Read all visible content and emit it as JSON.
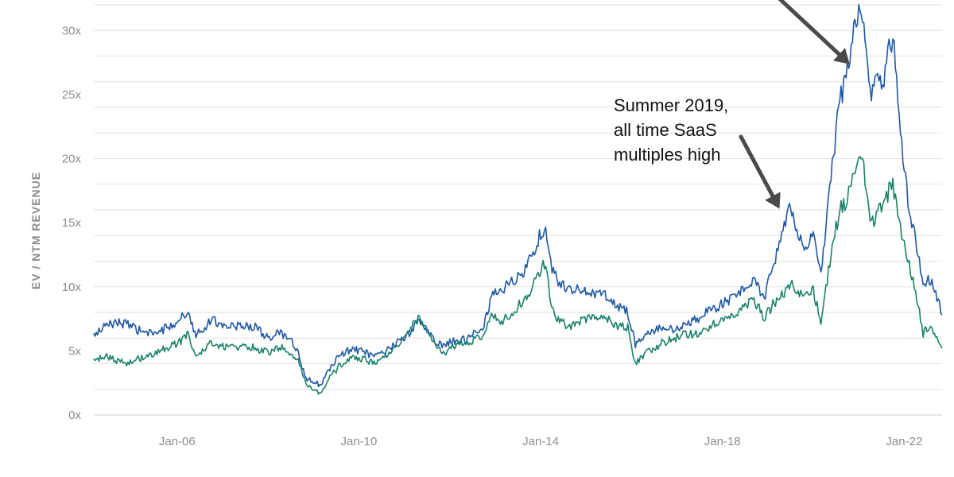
{
  "chart_data": {
    "type": "line",
    "ylabel": "EV / NTM REVENUE",
    "ylim": [
      0,
      32
    ],
    "yticks": [
      {
        "value": 0,
        "label": "0x"
      },
      {
        "value": 5,
        "label": "5x"
      },
      {
        "value": 10,
        "label": "10x"
      },
      {
        "value": 15,
        "label": "15x"
      },
      {
        "value": 20,
        "label": "20x"
      },
      {
        "value": 25,
        "label": "25x"
      },
      {
        "value": 30,
        "label": "30x"
      }
    ],
    "xlim": [
      "2004-03",
      "2022-11"
    ],
    "xticks": [
      {
        "value": "2006-01",
        "label": "Jan-06"
      },
      {
        "value": "2010-01",
        "label": "Jan-10"
      },
      {
        "value": "2014-01",
        "label": "Jan-14"
      },
      {
        "value": "2018-01",
        "label": "Jan-18"
      },
      {
        "value": "2022-01",
        "label": "Jan-22"
      }
    ],
    "grid": true,
    "series": [
      {
        "color": "#1f58a5",
        "points": [
          [
            "2004-03",
            6.2
          ],
          [
            "2004-06",
            6.9
          ],
          [
            "2004-09",
            7.3
          ],
          [
            "2004-12",
            7.0
          ],
          [
            "2005-03",
            6.6
          ],
          [
            "2005-06",
            6.3
          ],
          [
            "2005-09",
            6.6
          ],
          [
            "2005-12",
            7.1
          ],
          [
            "2006-02",
            7.6
          ],
          [
            "2006-04",
            7.9
          ],
          [
            "2006-06",
            6.3
          ],
          [
            "2006-08",
            6.8
          ],
          [
            "2006-10",
            7.4
          ],
          [
            "2007-01",
            7.1
          ],
          [
            "2007-04",
            6.9
          ],
          [
            "2007-07",
            7.0
          ],
          [
            "2007-10",
            6.8
          ],
          [
            "2008-01",
            6.0
          ],
          [
            "2008-04",
            6.4
          ],
          [
            "2008-07",
            5.8
          ],
          [
            "2008-09",
            4.8
          ],
          [
            "2008-11",
            2.8
          ],
          [
            "2009-01",
            2.6
          ],
          [
            "2009-03",
            2.3
          ],
          [
            "2009-05",
            3.5
          ],
          [
            "2009-08",
            4.7
          ],
          [
            "2009-11",
            5.1
          ],
          [
            "2010-02",
            5.0
          ],
          [
            "2010-05",
            4.5
          ],
          [
            "2010-08",
            4.9
          ],
          [
            "2010-11",
            5.6
          ],
          [
            "2011-02",
            6.3
          ],
          [
            "2011-05",
            7.4
          ],
          [
            "2011-08",
            6.2
          ],
          [
            "2011-11",
            5.3
          ],
          [
            "2012-02",
            5.8
          ],
          [
            "2012-05",
            5.9
          ],
          [
            "2012-08",
            6.6
          ],
          [
            "2012-10",
            7.0
          ],
          [
            "2012-12",
            9.3
          ],
          [
            "2013-03",
            9.8
          ],
          [
            "2013-06",
            10.5
          ],
          [
            "2013-09",
            11.3
          ],
          [
            "2013-12",
            13.5
          ],
          [
            "2014-02",
            14.6
          ],
          [
            "2014-04",
            11.4
          ],
          [
            "2014-06",
            10.2
          ],
          [
            "2014-09",
            9.9
          ],
          [
            "2014-12",
            9.6
          ],
          [
            "2015-03",
            9.6
          ],
          [
            "2015-06",
            9.3
          ],
          [
            "2015-09",
            8.6
          ],
          [
            "2015-12",
            8.1
          ],
          [
            "2016-02",
            5.4
          ],
          [
            "2016-05",
            6.3
          ],
          [
            "2016-09",
            6.9
          ],
          [
            "2016-12",
            6.6
          ],
          [
            "2017-03",
            7.0
          ],
          [
            "2017-06",
            7.4
          ],
          [
            "2017-09",
            8.0
          ],
          [
            "2017-12",
            8.5
          ],
          [
            "2018-03",
            9.0
          ],
          [
            "2018-06",
            9.6
          ],
          [
            "2018-09",
            10.6
          ],
          [
            "2018-12",
            9.1
          ],
          [
            "2019-03",
            12.3
          ],
          [
            "2019-06",
            15.3
          ],
          [
            "2019-07",
            16.2
          ],
          [
            "2019-09",
            14.3
          ],
          [
            "2019-11",
            12.7
          ],
          [
            "2020-01",
            14.3
          ],
          [
            "2020-03",
            10.8
          ],
          [
            "2020-06",
            19.5
          ],
          [
            "2020-08",
            24.5
          ],
          [
            "2020-10",
            27.0
          ],
          [
            "2020-12",
            30.6
          ],
          [
            "2021-02",
            31.5
          ],
          [
            "2021-04",
            24.7
          ],
          [
            "2021-06",
            25.8
          ],
          [
            "2021-08",
            26.8
          ],
          [
            "2021-10",
            29.9
          ],
          [
            "2021-12",
            22.1
          ],
          [
            "2022-02",
            17.0
          ],
          [
            "2022-04",
            13.5
          ],
          [
            "2022-06",
            10.1
          ],
          [
            "2022-08",
            10.6
          ],
          [
            "2022-10",
            8.9
          ],
          [
            "2022-11",
            7.8
          ]
        ]
      },
      {
        "color": "#19826a",
        "points": [
          [
            "2004-03",
            4.2
          ],
          [
            "2004-06",
            4.6
          ],
          [
            "2004-09",
            4.2
          ],
          [
            "2004-12",
            4.1
          ],
          [
            "2005-03",
            4.4
          ],
          [
            "2005-06",
            4.7
          ],
          [
            "2005-09",
            5.1
          ],
          [
            "2005-12",
            5.4
          ],
          [
            "2006-02",
            5.8
          ],
          [
            "2006-04",
            6.3
          ],
          [
            "2006-06",
            4.5
          ],
          [
            "2006-08",
            5.2
          ],
          [
            "2006-10",
            5.6
          ],
          [
            "2007-01",
            5.4
          ],
          [
            "2007-04",
            5.3
          ],
          [
            "2007-07",
            5.4
          ],
          [
            "2007-10",
            5.2
          ],
          [
            "2008-01",
            4.9
          ],
          [
            "2008-04",
            5.3
          ],
          [
            "2008-07",
            4.8
          ],
          [
            "2008-09",
            4.2
          ],
          [
            "2008-11",
            2.4
          ],
          [
            "2009-01",
            1.9
          ],
          [
            "2009-03",
            1.6
          ],
          [
            "2009-05",
            2.8
          ],
          [
            "2009-08",
            3.9
          ],
          [
            "2009-11",
            4.4
          ],
          [
            "2010-02",
            4.4
          ],
          [
            "2010-05",
            4.0
          ],
          [
            "2010-08",
            4.5
          ],
          [
            "2010-11",
            5.4
          ],
          [
            "2011-02",
            6.4
          ],
          [
            "2011-05",
            7.7
          ],
          [
            "2011-08",
            6.0
          ],
          [
            "2011-11",
            4.8
          ],
          [
            "2012-02",
            5.3
          ],
          [
            "2012-05",
            5.6
          ],
          [
            "2012-08",
            6.0
          ],
          [
            "2012-10",
            6.3
          ],
          [
            "2012-12",
            8.0
          ],
          [
            "2013-03",
            7.3
          ],
          [
            "2013-06",
            8.2
          ],
          [
            "2013-09",
            9.0
          ],
          [
            "2013-12",
            11.0
          ],
          [
            "2014-02",
            11.9
          ],
          [
            "2014-04",
            8.5
          ],
          [
            "2014-06",
            7.2
          ],
          [
            "2014-09",
            7.0
          ],
          [
            "2014-12",
            7.3
          ],
          [
            "2015-03",
            7.6
          ],
          [
            "2015-06",
            7.5
          ],
          [
            "2015-09",
            7.0
          ],
          [
            "2015-12",
            6.9
          ],
          [
            "2016-02",
            4.0
          ],
          [
            "2016-05",
            4.9
          ],
          [
            "2016-09",
            5.6
          ],
          [
            "2016-12",
            5.9
          ],
          [
            "2017-03",
            6.3
          ],
          [
            "2017-06",
            6.3
          ],
          [
            "2017-09",
            6.8
          ],
          [
            "2017-12",
            7.3
          ],
          [
            "2018-03",
            7.7
          ],
          [
            "2018-06",
            8.2
          ],
          [
            "2018-09",
            9.2
          ],
          [
            "2018-12",
            7.6
          ],
          [
            "2019-03",
            8.9
          ],
          [
            "2019-06",
            9.8
          ],
          [
            "2019-07",
            10.3
          ],
          [
            "2019-09",
            9.7
          ],
          [
            "2019-11",
            9.3
          ],
          [
            "2020-01",
            9.9
          ],
          [
            "2020-03",
            7.0
          ],
          [
            "2020-06",
            13.2
          ],
          [
            "2020-08",
            15.9
          ],
          [
            "2020-10",
            16.8
          ],
          [
            "2020-12",
            19.1
          ],
          [
            "2021-02",
            20.3
          ],
          [
            "2021-04",
            14.7
          ],
          [
            "2021-06",
            15.6
          ],
          [
            "2021-08",
            17.0
          ],
          [
            "2021-10",
            17.9
          ],
          [
            "2021-12",
            14.4
          ],
          [
            "2022-02",
            12.2
          ],
          [
            "2022-04",
            9.7
          ],
          [
            "2022-06",
            6.4
          ],
          [
            "2022-08",
            6.9
          ],
          [
            "2022-10",
            5.6
          ],
          [
            "2022-11",
            5.2
          ]
        ]
      }
    ],
    "annotations": [
      {
        "lines": [
          "Summer 2019,",
          "all time SaaS",
          "multiples high"
        ],
        "points_to": [
          "2019-07",
          15.6
        ]
      },
      {
        "lines": [],
        "points_to": [
          "2020-11",
          27.0
        ]
      }
    ]
  }
}
